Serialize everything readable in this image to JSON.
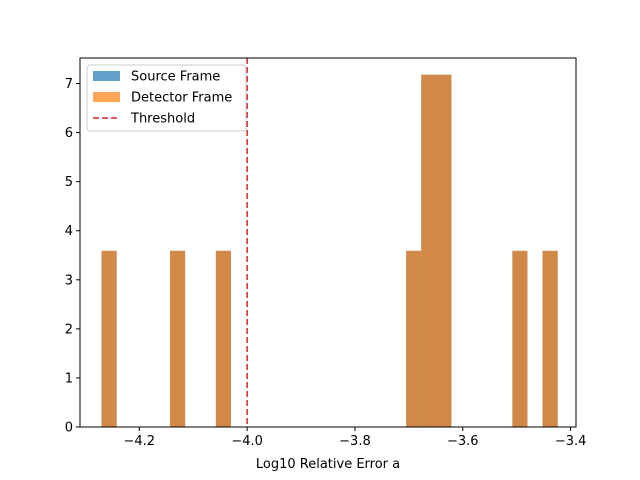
{
  "chart_data": {
    "type": "bar",
    "xlabel": "Log10 Relative Error a",
    "ylabel": "",
    "xlim": [
      -4.31,
      -3.39
    ],
    "ylim": [
      0,
      7.52
    ],
    "xticks": [
      -4.2,
      -4.0,
      -3.8,
      -3.6,
      -3.4
    ],
    "xtick_labels": [
      "−4.2",
      "−4.0",
      "−3.8",
      "−3.6",
      "−3.4"
    ],
    "yticks": [
      0,
      1,
      2,
      3,
      4,
      5,
      6,
      7
    ],
    "ytick_labels": [
      "0",
      "1",
      "2",
      "3",
      "4",
      "5",
      "6",
      "7"
    ],
    "grid": false,
    "legend_placement": "top-left",
    "threshold": {
      "name": "Threshold",
      "x": -4.0,
      "color": "#d62728",
      "style": "dashed"
    },
    "series": [
      {
        "name": "Source Frame",
        "color": "#1f77b4",
        "alpha": 0.7,
        "bins": [
          {
            "x0": -4.27,
            "x1": -4.242,
            "value": 3.59
          },
          {
            "x0": -4.143,
            "x1": -4.115,
            "value": 3.59
          },
          {
            "x0": -4.058,
            "x1": -4.03,
            "value": 3.59
          },
          {
            "x0": -3.705,
            "x1": -3.677,
            "value": 3.59
          },
          {
            "x0": -3.677,
            "x1": -3.621,
            "value": 7.18
          },
          {
            "x0": -3.508,
            "x1": -3.48,
            "value": 3.59
          },
          {
            "x0": -3.452,
            "x1": -3.424,
            "value": 3.59
          }
        ]
      },
      {
        "name": "Detector Frame",
        "color": "#ff7f0e",
        "alpha": 0.7,
        "bins": [
          {
            "x0": -4.27,
            "x1": -4.242,
            "value": 3.59
          },
          {
            "x0": -4.143,
            "x1": -4.115,
            "value": 3.59
          },
          {
            "x0": -4.058,
            "x1": -4.03,
            "value": 3.59
          },
          {
            "x0": -3.705,
            "x1": -3.677,
            "value": 3.59
          },
          {
            "x0": -3.677,
            "x1": -3.621,
            "value": 7.18
          },
          {
            "x0": -3.508,
            "x1": -3.48,
            "value": 3.59
          },
          {
            "x0": -3.452,
            "x1": -3.424,
            "value": 3.59
          }
        ]
      }
    ]
  }
}
